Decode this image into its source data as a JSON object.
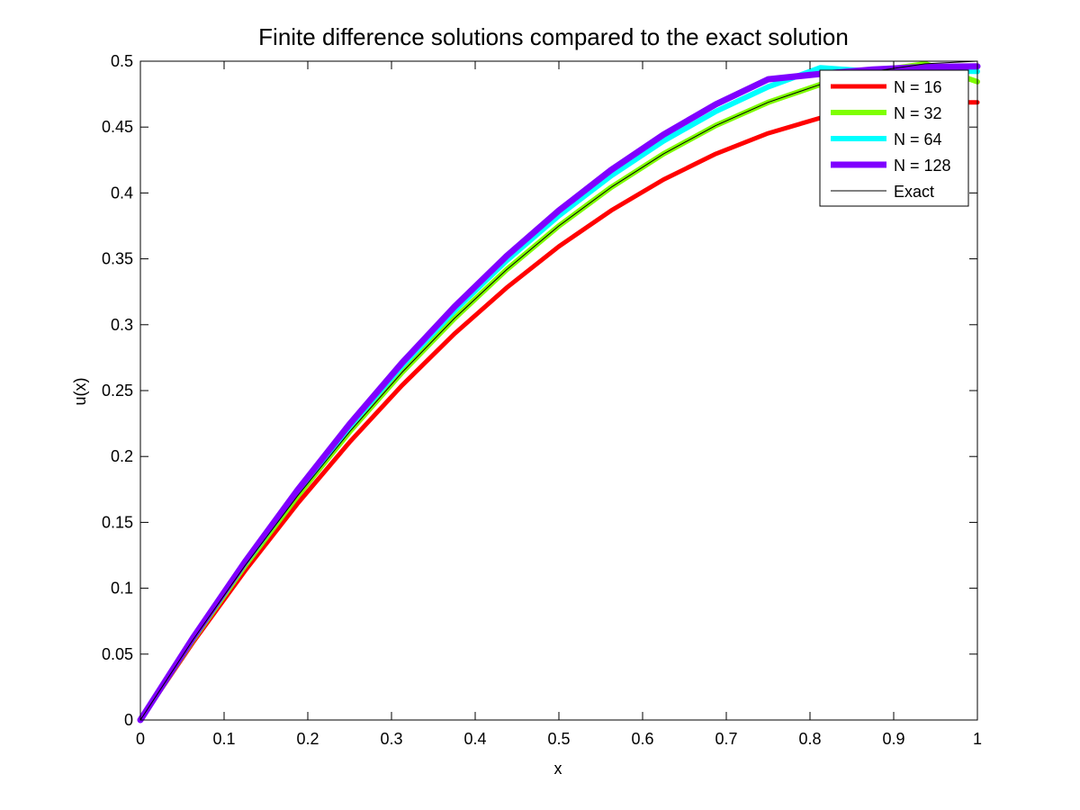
{
  "chart_data": {
    "type": "line",
    "title": "Finite difference solutions compared to the exact solution",
    "xlabel": "x",
    "ylabel": "u(x)",
    "xlim": [
      0,
      1
    ],
    "ylim": [
      0,
      0.5
    ],
    "x_ticks": [
      "0",
      "0.1",
      "0.2",
      "0.3",
      "0.4",
      "0.5",
      "0.6",
      "0.7",
      "0.8",
      "0.9",
      "1"
    ],
    "y_ticks": [
      "0",
      "0.05",
      "0.1",
      "0.15",
      "0.2",
      "0.25",
      "0.3",
      "0.35",
      "0.4",
      "0.45",
      "0.5"
    ],
    "grid": false,
    "legend_position": "top-right",
    "series": [
      {
        "name": "N = 16",
        "color": "#ff0000",
        "x": [
          0,
          0.0625,
          0.125,
          0.1875,
          0.25,
          0.3125,
          0.375,
          0.4375,
          0.5,
          0.5625,
          0.625,
          0.6875,
          0.75,
          0.8125,
          0.875,
          0.9375,
          1
        ],
        "y": [
          0,
          0.0586,
          0.1133,
          0.1641,
          0.2109,
          0.2539,
          0.293,
          0.3281,
          0.3594,
          0.3867,
          0.4102,
          0.4297,
          0.4453,
          0.457,
          0.4648,
          0.4688,
          0.4688
        ]
      },
      {
        "name": "N = 32",
        "color": "#7fff00",
        "x": [
          0,
          0.0625,
          0.125,
          0.1875,
          0.25,
          0.3125,
          0.375,
          0.4375,
          0.5,
          0.5625,
          0.625,
          0.6875,
          0.75,
          0.8125,
          0.875,
          0.9375,
          1
        ],
        "y": [
          0,
          0.0605,
          0.1172,
          0.1699,
          0.2188,
          0.2637,
          0.3047,
          0.3418,
          0.375,
          0.4043,
          0.4297,
          0.4512,
          0.4688,
          0.4824,
          0.4922,
          0.498,
          0.4844
        ]
      },
      {
        "name": "N = 64",
        "color": "#00ffff",
        "x": [
          0,
          0.0625,
          0.125,
          0.1875,
          0.25,
          0.3125,
          0.375,
          0.4375,
          0.5,
          0.5625,
          0.625,
          0.6875,
          0.75,
          0.8125,
          0.875,
          0.9375,
          1
        ],
        "y": [
          0,
          0.0615,
          0.1191,
          0.1729,
          0.2227,
          0.2686,
          0.3105,
          0.3486,
          0.3828,
          0.4131,
          0.4395,
          0.4619,
          0.4805,
          0.4951,
          0.4922,
          0.4932,
          0.4922
        ]
      },
      {
        "name": "N = 128",
        "color": "#7f00ff",
        "x": [
          0,
          0.0625,
          0.125,
          0.1875,
          0.25,
          0.3125,
          0.375,
          0.4375,
          0.5,
          0.5625,
          0.625,
          0.6875,
          0.75,
          0.8125,
          0.875,
          0.9375,
          1
        ],
        "y": [
          0,
          0.062,
          0.1201,
          0.1743,
          0.2246,
          0.271,
          0.3135,
          0.3521,
          0.3867,
          0.4175,
          0.4443,
          0.4673,
          0.4863,
          0.4904,
          0.4937,
          0.4956,
          0.4961
        ]
      },
      {
        "name": "Exact",
        "color": "#000000",
        "x": [
          0,
          0.0625,
          0.125,
          0.1875,
          0.25,
          0.3125,
          0.375,
          0.4375,
          0.5,
          0.5625,
          0.625,
          0.6875,
          0.75,
          0.8125,
          0.875,
          0.9375,
          1
        ],
        "y": [
          0,
          0.0605,
          0.1172,
          0.1699,
          0.2188,
          0.2637,
          0.3047,
          0.3418,
          0.375,
          0.4043,
          0.4297,
          0.4512,
          0.4688,
          0.4824,
          0.4922,
          0.498,
          0.5
        ]
      }
    ]
  }
}
